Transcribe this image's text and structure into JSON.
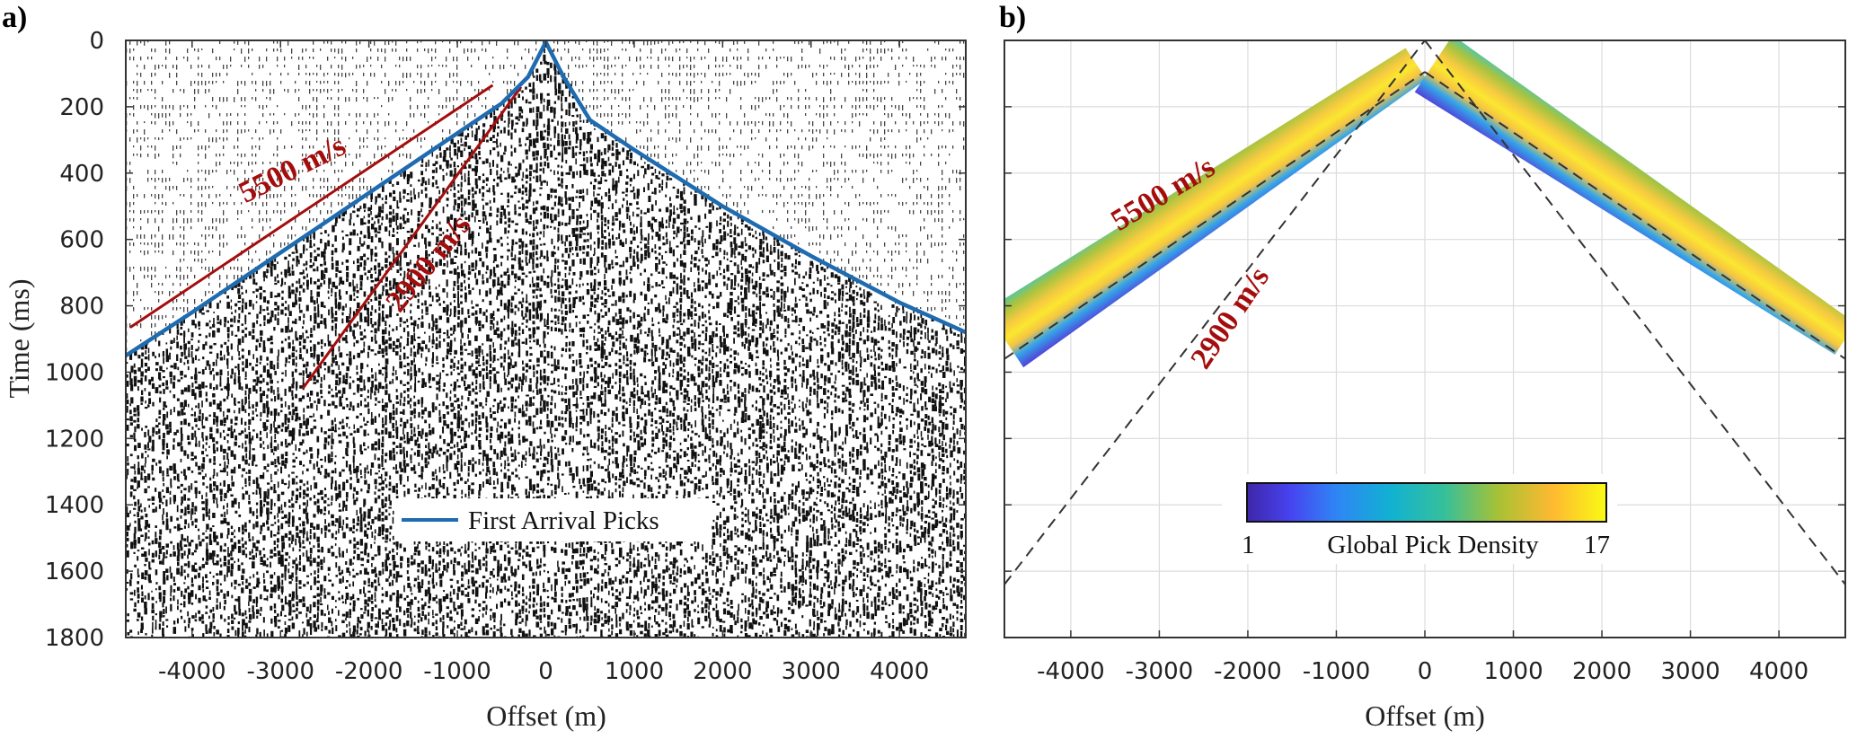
{
  "chart_data": [
    {
      "type": "image",
      "panel_label": "a)",
      "xlabel": "Offset (m)",
      "ylabel": "Time (ms)",
      "xlim": [
        -4750,
        4750
      ],
      "ylim": [
        1800,
        0
      ],
      "x_ticks": [
        -4000,
        -3000,
        -2000,
        -1000,
        0,
        1000,
        2000,
        3000,
        4000
      ],
      "x_tick_labels": [
        "-4000",
        "-3000",
        "-2000",
        "-1000",
        "0",
        "1000",
        "2000",
        "3000",
        "4000"
      ],
      "y_ticks": [
        0,
        200,
        400,
        600,
        800,
        1000,
        1200,
        1400,
        1600,
        1800
      ],
      "y_tick_labels": [
        "0",
        "200",
        "400",
        "600",
        "800",
        "1000",
        "1200",
        "1400",
        "1600",
        "1800"
      ],
      "legend": {
        "entries": [
          "First Arrival Picks"
        ],
        "placement": "lower-center"
      },
      "series": [
        {
          "name": "First Arrival Picks",
          "color": "#1f6bb0",
          "x": [
            -4750,
            -4000,
            -3000,
            -2000,
            -1000,
            -500,
            -200,
            0,
            200,
            500,
            1000,
            2000,
            3000,
            4000,
            4750
          ],
          "y": [
            950,
            820,
            640,
            460,
            280,
            190,
            110,
            5,
            110,
            240,
            330,
            500,
            650,
            790,
            880
          ]
        }
      ],
      "annotations": [
        {
          "text": "5500 m/s",
          "color": "#a50d0d",
          "line_x": [
            -4700,
            -600
          ],
          "line_y": [
            865,
            135
          ]
        },
        {
          "text": "2900 m/s",
          "color": "#a50d0d",
          "line_x": [
            -2750,
            -280
          ],
          "line_y": [
            1050,
            140
          ]
        }
      ]
    },
    {
      "type": "heatmap",
      "panel_label": "b)",
      "xlabel": "Offset (m)",
      "ylabel": "",
      "xlim": [
        -4750,
        4750
      ],
      "ylim": [
        1800,
        0
      ],
      "grid": true,
      "x_ticks": [
        -4000,
        -3000,
        -2000,
        -1000,
        0,
        1000,
        2000,
        3000,
        4000
      ],
      "x_tick_labels": [
        "-4000",
        "-3000",
        "-2000",
        "-1000",
        "0",
        "1000",
        "2000",
        "3000",
        "4000"
      ],
      "y_ticks": [
        0,
        200,
        400,
        600,
        800,
        1000,
        1200,
        1400,
        1600,
        1800
      ],
      "colorbar": {
        "label": "Global Pick Density",
        "min": 1,
        "max": 17,
        "min_label": "1",
        "max_label": "17",
        "placement": "lower-center"
      },
      "band_center_left": {
        "x": [
          -4750,
          -100
        ],
        "y": [
          900,
          70
        ]
      },
      "band_center_right": {
        "x": [
          100,
          4750
        ],
        "y": [
          70,
          900
        ]
      },
      "annotations": [
        {
          "text": "5500 m/s",
          "color": "#a50d0d"
        },
        {
          "text": "2900 m/s",
          "color": "#a50d0d"
        }
      ],
      "reference_lines": [
        {
          "x": [
            -4750,
            0
          ],
          "y": [
            960,
            95
          ]
        },
        {
          "x": [
            0,
            4750
          ],
          "y": [
            95,
            960
          ]
        },
        {
          "x": [
            -4750,
            0
          ],
          "y": [
            1640,
            0
          ]
        },
        {
          "x": [
            0,
            4750
          ],
          "y": [
            0,
            1640
          ]
        }
      ]
    }
  ]
}
